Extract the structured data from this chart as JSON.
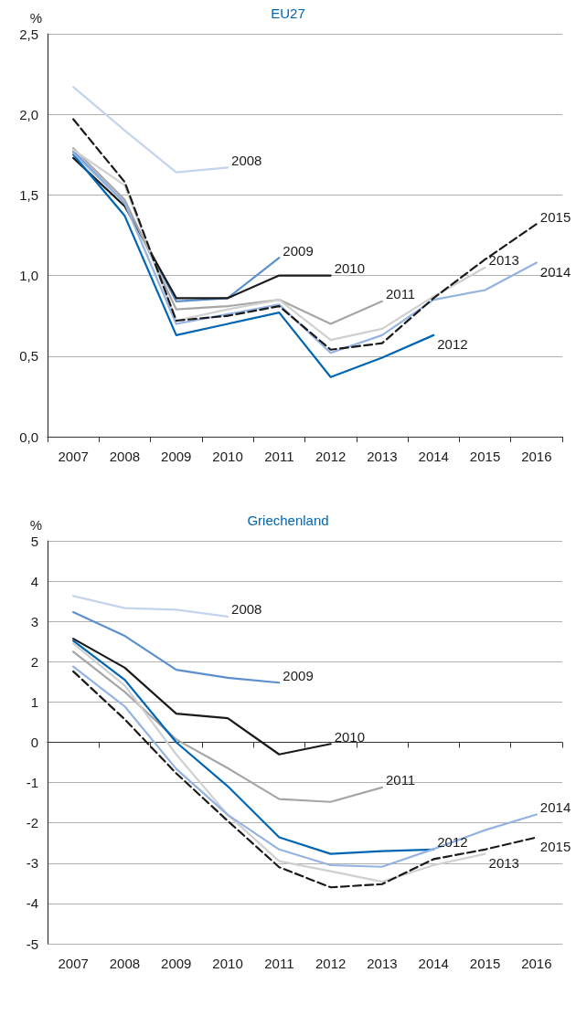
{
  "chart_data": [
    {
      "type": "line",
      "title": "EU27",
      "ylabel": "%",
      "categories": [
        "2007",
        "2008",
        "2009",
        "2010",
        "2011",
        "2012",
        "2013",
        "2014",
        "2015",
        "2016"
      ],
      "ylim": [
        0,
        2.5
      ],
      "yticks": [
        {
          "value": 0,
          "label": "0,0"
        },
        {
          "value": 0.5,
          "label": "0,5"
        },
        {
          "value": 1,
          "label": "1,0"
        },
        {
          "value": 1.5,
          "label": "1,5"
        },
        {
          "value": 2,
          "label": "2,0"
        },
        {
          "value": 2.5,
          "label": "2,5"
        }
      ],
      "grid": "y",
      "marker": "none",
      "series": [
        {
          "name": "2008",
          "color": "#c5d4ee",
          "line_style": "solid",
          "values": [
            2.17,
            1.9,
            1.64,
            1.67,
            null,
            null,
            null,
            null,
            null,
            null
          ]
        },
        {
          "name": "2009",
          "color": "#5b8fd0",
          "line_style": "solid",
          "values": [
            1.77,
            1.45,
            0.84,
            0.86,
            1.11,
            null,
            null,
            null,
            null,
            null
          ]
        },
        {
          "name": "2010",
          "color": "#1a1a1a",
          "line_style": "solid",
          "values": [
            1.73,
            1.43,
            0.86,
            0.86,
            1.0,
            1.0,
            null,
            null,
            null,
            null
          ]
        },
        {
          "name": "2011",
          "color": "#a6a6a6",
          "line_style": "solid",
          "values": [
            1.79,
            1.47,
            0.79,
            0.81,
            0.85,
            0.7,
            0.84,
            null,
            null,
            null
          ]
        },
        {
          "name": "2012",
          "color": "#0066b3",
          "line_style": "solid",
          "values": [
            1.75,
            1.37,
            0.63,
            0.7,
            0.77,
            0.37,
            0.49,
            0.63,
            null,
            null
          ]
        },
        {
          "name": "2013",
          "color": "#d0d0d0",
          "line_style": "solid",
          "values": [
            1.78,
            1.56,
            0.72,
            0.79,
            0.85,
            0.6,
            0.67,
            0.87,
            1.05,
            null
          ]
        },
        {
          "name": "2014",
          "color": "#94b3e0",
          "line_style": "solid",
          "values": [
            1.76,
            1.45,
            0.7,
            0.76,
            0.82,
            0.52,
            0.63,
            0.85,
            0.91,
            1.08
          ]
        },
        {
          "name": "2015",
          "color": "#1a1a1a",
          "line_style": "dashed",
          "values": [
            1.97,
            1.58,
            0.72,
            0.75,
            0.81,
            0.54,
            0.58,
            0.86,
            1.1,
            1.32
          ]
        }
      ]
    },
    {
      "type": "line",
      "title": "Griechenland",
      "ylabel": "%",
      "categories": [
        "2007",
        "2008",
        "2009",
        "2010",
        "2011",
        "2012",
        "2013",
        "2014",
        "2015",
        "2016"
      ],
      "ylim": [
        -5,
        5
      ],
      "yticks": [
        -5,
        -4,
        -3,
        -2,
        -1,
        0,
        1,
        2,
        3,
        4,
        5
      ],
      "grid": "y",
      "marker": "none",
      "series": [
        {
          "name": "2008",
          "color": "#c5d4ee",
          "line_style": "solid",
          "values": [
            3.63,
            3.33,
            3.29,
            3.12,
            null,
            null,
            null,
            null,
            null,
            null
          ]
        },
        {
          "name": "2009",
          "color": "#5b8fd0",
          "line_style": "solid",
          "values": [
            3.23,
            2.64,
            1.8,
            1.6,
            1.48,
            null,
            null,
            null,
            null,
            null
          ]
        },
        {
          "name": "2010",
          "color": "#1a1a1a",
          "line_style": "solid",
          "values": [
            2.57,
            1.85,
            0.71,
            0.6,
            -0.3,
            -0.04,
            null,
            null,
            null,
            null
          ]
        },
        {
          "name": "2011",
          "color": "#a6a6a6",
          "line_style": "solid",
          "values": [
            2.25,
            1.25,
            0.07,
            -0.64,
            -1.41,
            -1.48,
            -1.12,
            null,
            null,
            null
          ]
        },
        {
          "name": "2012",
          "color": "#0066b3",
          "line_style": "solid",
          "values": [
            2.52,
            1.55,
            0.0,
            -1.09,
            -2.36,
            -2.77,
            -2.7,
            -2.66,
            null,
            null
          ]
        },
        {
          "name": "2013",
          "color": "#d0d0d0",
          "line_style": "solid",
          "values": [
            2.45,
            1.41,
            -0.3,
            -1.8,
            -2.95,
            -3.2,
            -3.46,
            -3.05,
            -2.77,
            null
          ]
        },
        {
          "name": "2014",
          "color": "#94b3e0",
          "line_style": "solid",
          "values": [
            1.88,
            0.89,
            -0.66,
            -1.8,
            -2.66,
            -3.05,
            -3.09,
            -2.65,
            -2.18,
            -1.79
          ]
        },
        {
          "name": "2015",
          "color": "#1a1a1a",
          "line_style": "dashed",
          "values": [
            1.76,
            0.57,
            -0.77,
            -1.95,
            -3.1,
            -3.6,
            -3.52,
            -2.9,
            -2.66,
            -2.36
          ]
        }
      ]
    }
  ]
}
